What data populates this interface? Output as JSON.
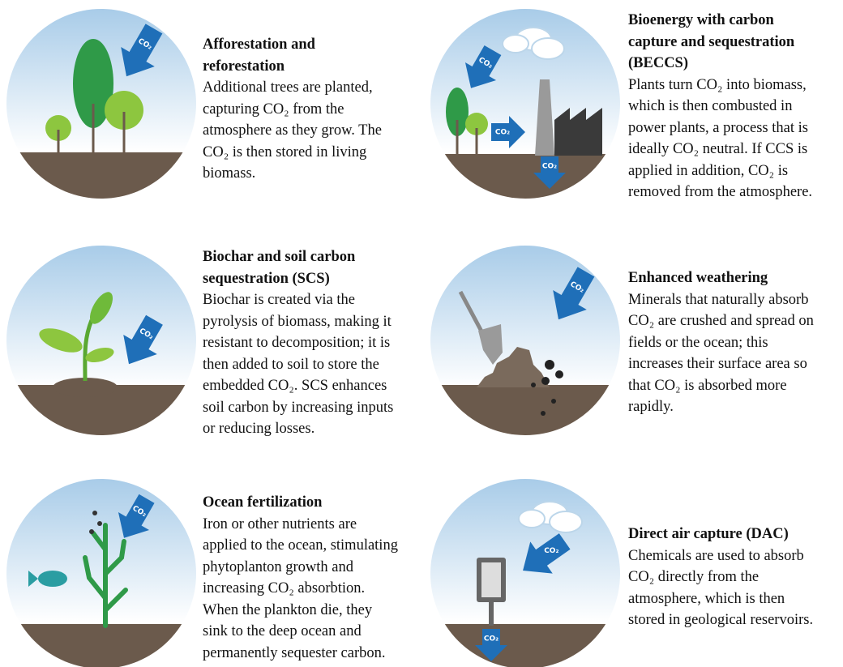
{
  "items": [
    {
      "title_lines": [
        "Afforestation and",
        "reforestation"
      ],
      "description_lines": [
        "Additional trees are planted,",
        "capturing CO₂ from the",
        "atmosphere as they grow. The",
        "CO₂ is then stored in living",
        "biomass."
      ],
      "arrow_labels": [
        "CO₂"
      ]
    },
    {
      "title_lines": [
        "Bioenergy with carbon",
        "capture and sequestration",
        "(BECCS)"
      ],
      "description_lines": [
        "Plants turn CO₂ into biomass,",
        "which is then combusted in",
        "power plants, a process that is",
        "ideally CO₂ neutral. If CCS is",
        "applied in addition, CO₂ is",
        "removed from the atmosphere."
      ],
      "arrow_labels": [
        "CO₂",
        "CO₂",
        "CO₂"
      ]
    },
    {
      "title_lines": [
        "Biochar and soil carbon",
        "sequestration (SCS)"
      ],
      "description_lines": [
        "Biochar is created via the",
        "pyrolysis of biomass, making it",
        "resistant to decomposition; it is",
        "then added to soil to store the",
        "embedded CO₂. SCS enhances",
        "soil carbon by increasing inputs",
        "or reducing losses."
      ],
      "arrow_labels": [
        "CO₂"
      ]
    },
    {
      "title_lines": [
        "Enhanced weathering"
      ],
      "description_lines": [
        "Minerals that naturally absorb",
        "CO₂ are crushed and spread on",
        "fields or the ocean; this",
        "increases their surface area so",
        "that CO₂ is absorbed more",
        "rapidly."
      ],
      "arrow_labels": [
        "CO₂"
      ]
    },
    {
      "title_lines": [
        "Ocean fertilization"
      ],
      "description_lines": [
        "Iron or other nutrients are",
        "applied to the ocean, stimulating",
        "phytoplanton growth and",
        "increasing CO₂ absorbtion.",
        "When the plankton die, they",
        "sink to the deep ocean and",
        "permanently sequester carbon."
      ],
      "arrow_labels": [
        "CO₂"
      ]
    },
    {
      "title_lines": [
        "Direct air capture (DAC)"
      ],
      "description_lines": [
        "Chemicals are used to absorb",
        "CO₂ directly from the",
        "atmosphere, which is then",
        "stored in geological reservoirs."
      ],
      "arrow_labels": [
        "CO₂",
        "CO₂"
      ]
    }
  ]
}
